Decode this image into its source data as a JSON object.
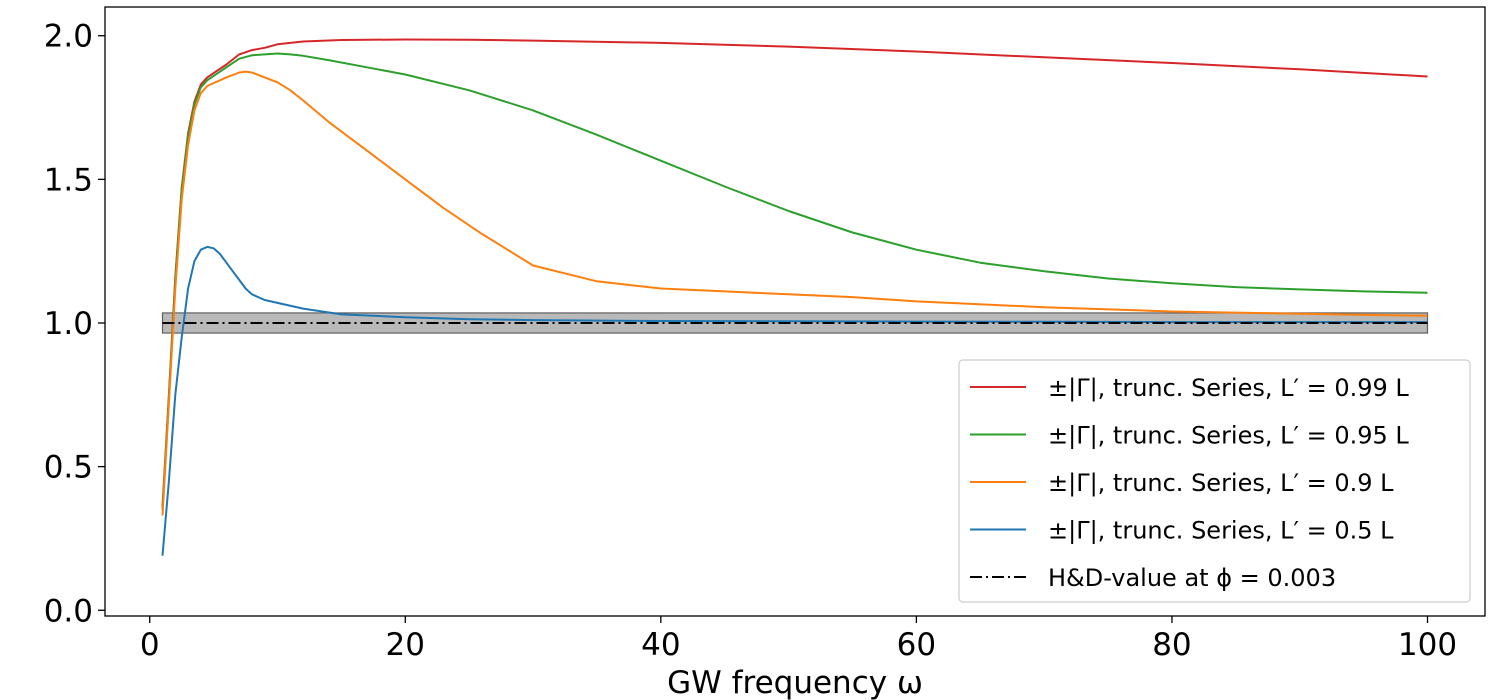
{
  "chart_data": {
    "type": "line",
    "title": "",
    "xlabel": "GW frequency ω",
    "ylabel": "",
    "xlim": [
      -3.5,
      104.5
    ],
    "ylim": [
      -0.02,
      2.1
    ],
    "xticks": [
      0,
      20,
      40,
      60,
      80,
      100
    ],
    "yticks": [
      0.0,
      0.5,
      1.0,
      1.5,
      2.0
    ],
    "xtick_labels": [
      "0",
      "20",
      "40",
      "60",
      "80",
      "100"
    ],
    "ytick_labels": [
      "0.0",
      "0.5",
      "1.0",
      "1.5",
      "2.0"
    ],
    "grid": false,
    "legend_position": "lower-right",
    "series": [
      {
        "name": "±|Γ|, trunc. Series, L′ = 0.99 L",
        "color": "#d62728",
        "x": [
          1,
          1.5,
          2,
          2.5,
          3,
          3.5,
          4,
          4.5,
          5,
          6,
          7,
          8,
          9,
          10,
          12,
          15,
          20,
          25,
          30,
          40,
          50,
          60,
          70,
          80,
          90,
          100
        ],
        "y": [
          0.36,
          0.75,
          1.16,
          1.47,
          1.66,
          1.77,
          1.83,
          1.855,
          1.87,
          1.9,
          1.935,
          1.95,
          1.958,
          1.97,
          1.98,
          1.985,
          1.987,
          1.986,
          1.983,
          1.975,
          1.962,
          1.945,
          1.925,
          1.905,
          1.883,
          1.858
        ]
      },
      {
        "name": "±|Γ|, trunc. Series, L′ = 0.95 L",
        "color": "#2ca02c",
        "x": [
          1,
          1.5,
          2,
          2.5,
          3,
          3.5,
          4,
          4.5,
          5,
          6,
          7,
          8,
          9,
          10,
          11,
          12,
          14,
          17,
          20,
          25,
          30,
          35,
          40,
          45,
          50,
          55,
          60,
          65,
          70,
          75,
          80,
          85,
          90,
          95,
          100
        ],
        "y": [
          0.35,
          0.74,
          1.15,
          1.46,
          1.65,
          1.76,
          1.82,
          1.845,
          1.86,
          1.89,
          1.92,
          1.932,
          1.935,
          1.938,
          1.935,
          1.93,
          1.915,
          1.89,
          1.865,
          1.81,
          1.74,
          1.655,
          1.565,
          1.475,
          1.39,
          1.315,
          1.255,
          1.21,
          1.18,
          1.155,
          1.138,
          1.125,
          1.117,
          1.11,
          1.105
        ]
      },
      {
        "name": "±|Γ|, trunc. Series, L′ = 0.9 L",
        "color": "#ff7f0e",
        "x": [
          1,
          1.5,
          2,
          2.5,
          3,
          3.5,
          4,
          4.5,
          5,
          6,
          7,
          7.5,
          8,
          9,
          10,
          11,
          12,
          14,
          17,
          20,
          23,
          26,
          30,
          35,
          40,
          45,
          50,
          55,
          60,
          70,
          80,
          90,
          100
        ],
        "y": [
          0.33,
          0.72,
          1.12,
          1.43,
          1.62,
          1.74,
          1.8,
          1.825,
          1.835,
          1.855,
          1.872,
          1.875,
          1.872,
          1.855,
          1.838,
          1.81,
          1.775,
          1.7,
          1.6,
          1.5,
          1.4,
          1.31,
          1.2,
          1.145,
          1.12,
          1.11,
          1.1,
          1.09,
          1.075,
          1.055,
          1.04,
          1.032,
          1.025
        ]
      },
      {
        "name": "±|Γ|, trunc. Series, L′ = 0.5 L",
        "color": "#1f77b4",
        "x": [
          1,
          1.5,
          2,
          2.5,
          3,
          3.5,
          4,
          4.5,
          5,
          5.5,
          6,
          6.5,
          7,
          7.5,
          8,
          9,
          10,
          12,
          15,
          20,
          25,
          30,
          40,
          50,
          60,
          70,
          80,
          90,
          100
        ],
        "y": [
          0.19,
          0.45,
          0.75,
          0.95,
          1.12,
          1.215,
          1.255,
          1.265,
          1.26,
          1.24,
          1.21,
          1.18,
          1.15,
          1.12,
          1.1,
          1.08,
          1.07,
          1.05,
          1.03,
          1.02,
          1.013,
          1.01,
          1.007,
          1.006,
          1.005,
          1.004,
          1.003,
          1.003,
          1.003
        ]
      },
      {
        "name": "H&D-value at ϕ = 0.003",
        "color": "#000000",
        "dash": "dashdot",
        "x": [
          1,
          100
        ],
        "y": [
          1.0,
          1.0
        ]
      }
    ],
    "band": {
      "x": [
        1,
        100
      ],
      "y": [
        0.965,
        1.035
      ],
      "color": "#808080"
    }
  }
}
